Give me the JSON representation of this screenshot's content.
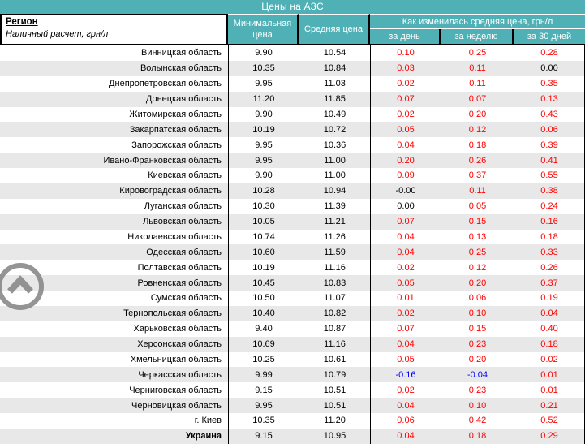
{
  "title": "Цены на АЗС",
  "colors": {
    "header_teal": "#4fb0b5",
    "header_text": "#ffffff",
    "row_stripe": "#e8e8e8",
    "red": "#ff0000",
    "blue": "#0000ff",
    "black": "#000000",
    "icon_gray": "#828282"
  },
  "header": {
    "region": "Регион",
    "region_note": "Наличный расчет, грн/л",
    "min_price": "Минимальная цена",
    "avg_price": "Средняя цена",
    "change_group": "Как изменилась средняя цена, грн/л",
    "change_cols": [
      "за день",
      "за неделю",
      "за 30 дней"
    ]
  },
  "scroll_top": {
    "icon": "chevron-up"
  },
  "table": {
    "rows": [
      {
        "region": "Винницкая область",
        "min": "9.90",
        "avg": "10.54",
        "changes": [
          {
            "v": "0.10",
            "c": "red"
          },
          {
            "v": "0.25",
            "c": "red"
          },
          {
            "v": "0.28",
            "c": "red"
          }
        ]
      },
      {
        "region": "Волынская область",
        "min": "10.35",
        "avg": "10.84",
        "changes": [
          {
            "v": "0.03",
            "c": "red"
          },
          {
            "v": "0.11",
            "c": "red"
          },
          {
            "v": "0.00",
            "c": "black"
          }
        ]
      },
      {
        "region": "Днепропетровская область",
        "min": "9.95",
        "avg": "11.03",
        "changes": [
          {
            "v": "0.02",
            "c": "red"
          },
          {
            "v": "0.11",
            "c": "red"
          },
          {
            "v": "0.35",
            "c": "red"
          }
        ]
      },
      {
        "region": "Донецкая область",
        "min": "11.20",
        "avg": "11.85",
        "changes": [
          {
            "v": "0.07",
            "c": "red"
          },
          {
            "v": "0.07",
            "c": "red"
          },
          {
            "v": "0.13",
            "c": "red"
          }
        ]
      },
      {
        "region": "Житомирская область",
        "min": "9.90",
        "avg": "10.49",
        "changes": [
          {
            "v": "0.02",
            "c": "red"
          },
          {
            "v": "0.20",
            "c": "red"
          },
          {
            "v": "0.43",
            "c": "red"
          }
        ]
      },
      {
        "region": "Закарпатская область",
        "min": "10.19",
        "avg": "10.72",
        "changes": [
          {
            "v": "0.05",
            "c": "red"
          },
          {
            "v": "0.12",
            "c": "red"
          },
          {
            "v": "0.06",
            "c": "red"
          }
        ]
      },
      {
        "region": "Запорожская область",
        "min": "9.95",
        "avg": "10.36",
        "changes": [
          {
            "v": "0.04",
            "c": "red"
          },
          {
            "v": "0.18",
            "c": "red"
          },
          {
            "v": "0.39",
            "c": "red"
          }
        ]
      },
      {
        "region": "Ивано-Франковская область",
        "min": "9.95",
        "avg": "11.00",
        "changes": [
          {
            "v": "0.20",
            "c": "red"
          },
          {
            "v": "0.26",
            "c": "red"
          },
          {
            "v": "0.41",
            "c": "red"
          }
        ]
      },
      {
        "region": "Киевская область",
        "min": "9.90",
        "avg": "11.00",
        "changes": [
          {
            "v": "0.09",
            "c": "red"
          },
          {
            "v": "0.37",
            "c": "red"
          },
          {
            "v": "0.55",
            "c": "red"
          }
        ]
      },
      {
        "region": "Кировоградская область",
        "min": "10.28",
        "avg": "10.94",
        "changes": [
          {
            "v": "-0.00",
            "c": "black"
          },
          {
            "v": "0.11",
            "c": "red"
          },
          {
            "v": "0.38",
            "c": "red"
          }
        ]
      },
      {
        "region": "Луганская область",
        "min": "10.30",
        "avg": "11.39",
        "changes": [
          {
            "v": "0.00",
            "c": "black"
          },
          {
            "v": "0.05",
            "c": "red"
          },
          {
            "v": "0.24",
            "c": "red"
          }
        ]
      },
      {
        "region": "Львовская область",
        "min": "10.05",
        "avg": "11.21",
        "changes": [
          {
            "v": "0.07",
            "c": "red"
          },
          {
            "v": "0.15",
            "c": "red"
          },
          {
            "v": "0.16",
            "c": "red"
          }
        ]
      },
      {
        "region": "Николаевская область",
        "min": "10.74",
        "avg": "11.26",
        "changes": [
          {
            "v": "0.04",
            "c": "red"
          },
          {
            "v": "0.13",
            "c": "red"
          },
          {
            "v": "0.18",
            "c": "red"
          }
        ]
      },
      {
        "region": "Одесская область",
        "min": "10.60",
        "avg": "11.59",
        "changes": [
          {
            "v": "0.04",
            "c": "red"
          },
          {
            "v": "0.25",
            "c": "red"
          },
          {
            "v": "0.33",
            "c": "red"
          }
        ]
      },
      {
        "region": "Полтавская область",
        "min": "10.19",
        "avg": "11.16",
        "changes": [
          {
            "v": "0.02",
            "c": "red"
          },
          {
            "v": "0.12",
            "c": "red"
          },
          {
            "v": "0.26",
            "c": "red"
          }
        ]
      },
      {
        "region": "Ровненская область",
        "min": "10.45",
        "avg": "10.83",
        "changes": [
          {
            "v": "0.05",
            "c": "red"
          },
          {
            "v": "0.20",
            "c": "red"
          },
          {
            "v": "0.37",
            "c": "red"
          }
        ]
      },
      {
        "region": "Сумская область",
        "min": "10.50",
        "avg": "11.07",
        "changes": [
          {
            "v": "0.01",
            "c": "red"
          },
          {
            "v": "0.06",
            "c": "red"
          },
          {
            "v": "0.19",
            "c": "red"
          }
        ]
      },
      {
        "region": "Тернопольская область",
        "min": "10.40",
        "avg": "10.82",
        "changes": [
          {
            "v": "0.02",
            "c": "red"
          },
          {
            "v": "0.10",
            "c": "red"
          },
          {
            "v": "0.04",
            "c": "red"
          }
        ]
      },
      {
        "region": "Харьковская область",
        "min": "9.40",
        "avg": "10.87",
        "changes": [
          {
            "v": "0.07",
            "c": "red"
          },
          {
            "v": "0.15",
            "c": "red"
          },
          {
            "v": "0.40",
            "c": "red"
          }
        ]
      },
      {
        "region": "Херсонская область",
        "min": "10.69",
        "avg": "11.16",
        "changes": [
          {
            "v": "0.04",
            "c": "red"
          },
          {
            "v": "0.23",
            "c": "red"
          },
          {
            "v": "0.18",
            "c": "red"
          }
        ]
      },
      {
        "region": "Хмельницкая область",
        "min": "10.25",
        "avg": "10.61",
        "changes": [
          {
            "v": "0.05",
            "c": "red"
          },
          {
            "v": "0.20",
            "c": "red"
          },
          {
            "v": "0.02",
            "c": "red"
          }
        ]
      },
      {
        "region": "Черкасская область",
        "min": "9.99",
        "avg": "10.79",
        "changes": [
          {
            "v": "-0.16",
            "c": "blue"
          },
          {
            "v": "-0.04",
            "c": "blue"
          },
          {
            "v": "0.01",
            "c": "red"
          }
        ]
      },
      {
        "region": "Черниговская область",
        "min": "9.15",
        "avg": "10.51",
        "changes": [
          {
            "v": "0.02",
            "c": "red"
          },
          {
            "v": "0.23",
            "c": "red"
          },
          {
            "v": "0.01",
            "c": "red"
          }
        ]
      },
      {
        "region": "Черновицкая область",
        "min": "9.95",
        "avg": "10.51",
        "changes": [
          {
            "v": "0.04",
            "c": "red"
          },
          {
            "v": "0.10",
            "c": "red"
          },
          {
            "v": "0.21",
            "c": "red"
          }
        ]
      },
      {
        "region": "г. Киев",
        "min": "10.35",
        "avg": "11.20",
        "changes": [
          {
            "v": "0.06",
            "c": "red"
          },
          {
            "v": "0.42",
            "c": "red"
          },
          {
            "v": "0.52",
            "c": "red"
          }
        ]
      },
      {
        "region": "Украина",
        "min": "9.15",
        "avg": "10.95",
        "bold": true,
        "changes": [
          {
            "v": "0.04",
            "c": "red"
          },
          {
            "v": "0.18",
            "c": "red"
          },
          {
            "v": "0.29",
            "c": "red"
          }
        ]
      }
    ]
  }
}
